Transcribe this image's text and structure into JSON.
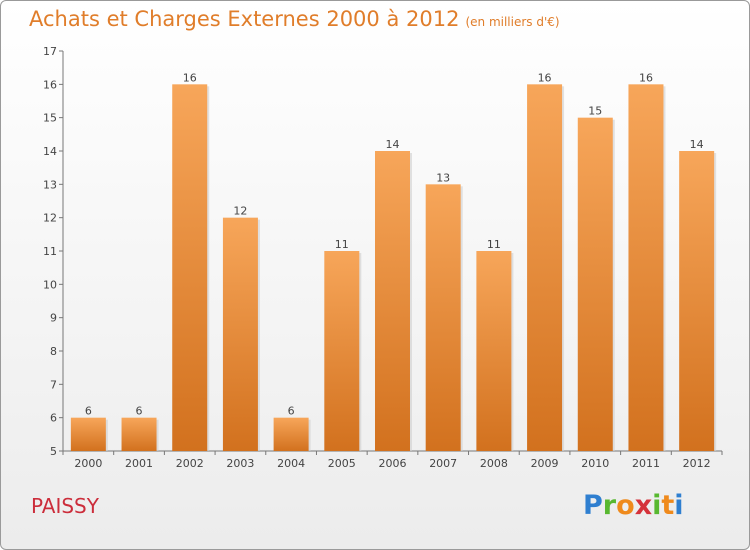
{
  "header": {
    "title": "Achats et Charges Externes 2000 à 2012",
    "subtitle": "(en milliers d'€)"
  },
  "footer": {
    "town": "PAISSY",
    "logo_letters": [
      "P",
      "r",
      "o",
      "x",
      "i",
      "t",
      "i"
    ],
    "logo_text": "Proxiti"
  },
  "colors": {
    "bar_light": "#f7a65a",
    "bar_dark": "#d2711e",
    "title": "#e07d2a",
    "town": "#cc2d3b"
  },
  "chart_data": {
    "type": "bar",
    "title": "Achats et Charges Externes 2000 à 2012",
    "subtitle": "(en milliers d'€)",
    "xlabel": "",
    "ylabel": "",
    "categories": [
      "2000",
      "2001",
      "2002",
      "2003",
      "2004",
      "2005",
      "2006",
      "2007",
      "2008",
      "2009",
      "2010",
      "2011",
      "2012"
    ],
    "values": [
      6,
      6,
      16,
      12,
      6,
      11,
      14,
      13,
      11,
      16,
      15,
      16,
      14
    ],
    "ylim": [
      5,
      17
    ],
    "yticks": [
      5,
      6,
      7,
      8,
      9,
      10,
      11,
      12,
      13,
      14,
      15,
      16,
      17
    ],
    "grid": false,
    "legend": "none",
    "data_labels": true
  }
}
